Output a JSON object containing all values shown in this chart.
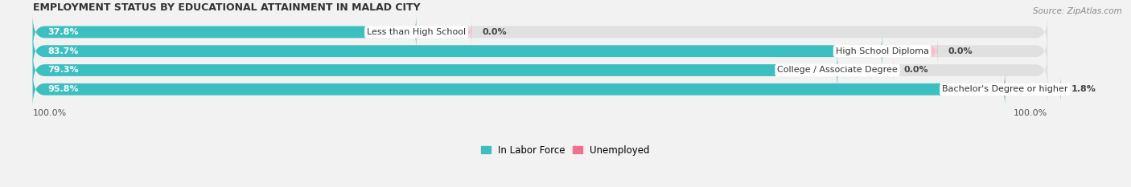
{
  "title": "EMPLOYMENT STATUS BY EDUCATIONAL ATTAINMENT IN MALAD CITY",
  "source": "Source: ZipAtlas.com",
  "categories": [
    "Less than High School",
    "High School Diploma",
    "College / Associate Degree",
    "Bachelor's Degree or higher"
  ],
  "in_labor_force": [
    37.8,
    83.7,
    79.3,
    95.8
  ],
  "unemployed": [
    0.0,
    0.0,
    0.0,
    1.8
  ],
  "unemployed_display": [
    5.0,
    5.0,
    5.0,
    5.0
  ],
  "left_axis_label": "100.0%",
  "right_axis_label": "100.0%",
  "color_labor": "#3bbfc0",
  "color_unemployed_zero": "#f5c0cc",
  "color_unemployed_nonzero": "#f07090",
  "bg_color": "#f2f2f2",
  "bar_bg_color": "#e0e0e0",
  "bar_height": 0.62,
  "legend_labor": "In Labor Force",
  "legend_unemployed": "Unemployed",
  "title_fontsize": 9.0,
  "source_fontsize": 7.5,
  "label_fontsize": 8.0,
  "cat_fontsize": 8.0,
  "legend_fontsize": 8.5
}
